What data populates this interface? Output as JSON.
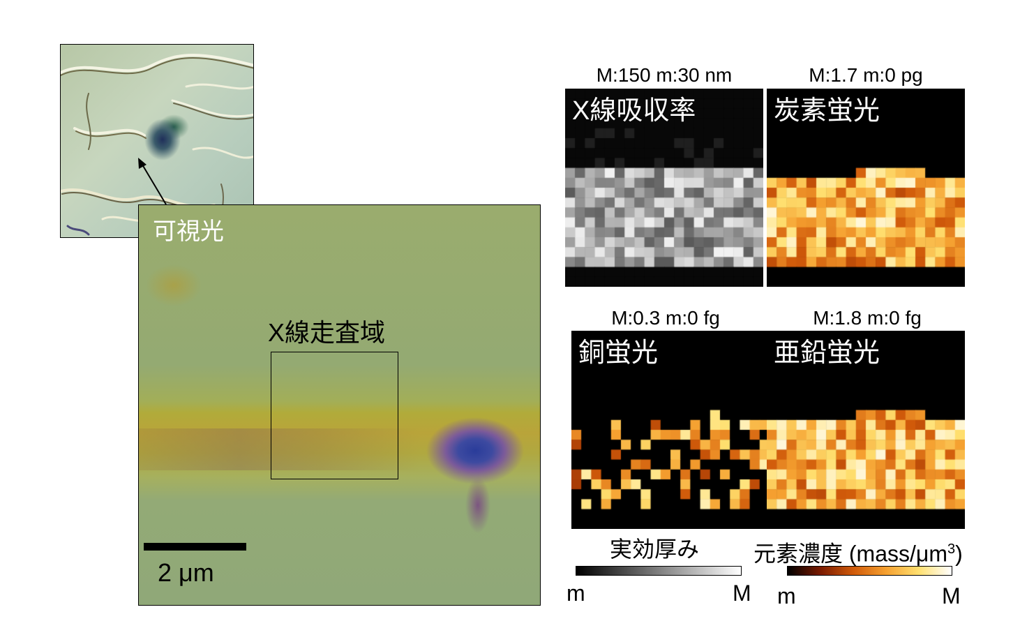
{
  "optical": {
    "label": "可視光",
    "scan_region_label": "X線走査域",
    "scale_bar_label": "2 μm"
  },
  "maps": [
    {
      "id": "absorption",
      "label": "X線吸収率",
      "range": "M:150 m:30 nm",
      "colormap": "gray"
    },
    {
      "id": "carbon",
      "label": "炭素蛍光",
      "range": "M:1.7 m:0 pg",
      "colormap": "afmhot"
    },
    {
      "id": "copper",
      "label": "銅蛍光",
      "range": "M:0.3 m:0 fg",
      "colormap": "afmhot"
    },
    {
      "id": "zinc",
      "label": "亜鉛蛍光",
      "range": "M:1.8 m:0 fg",
      "colormap": "afmhot"
    }
  ],
  "colorbars": {
    "gray": {
      "title": "実効厚み",
      "min": "m",
      "max": "M",
      "colors": [
        "#000000",
        "#ffffff"
      ]
    },
    "heat": {
      "title_prefix": "元素濃度 (mass/μm",
      "title_sup": "3",
      "title_suffix": ")",
      "min": "m",
      "max": "M",
      "colors": [
        "#000000",
        "#7a1a00",
        "#d05a0a",
        "#f5a030",
        "#ffe070",
        "#ffffff"
      ]
    }
  }
}
